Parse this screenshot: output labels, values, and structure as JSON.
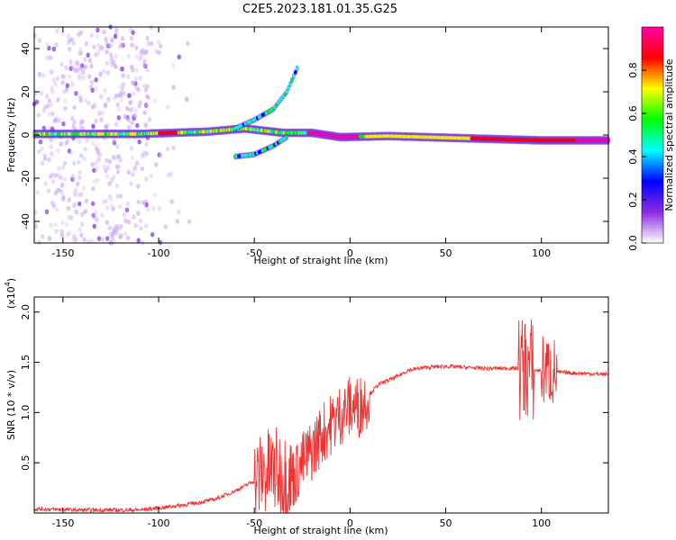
{
  "title": "C2E5.2023.181.01.35.G25",
  "chart_data": [
    {
      "type": "heatmap",
      "xlabel": "Height of straight line (km)",
      "ylabel": "Frequency (Hz)",
      "xlim": [
        -165,
        135
      ],
      "ylim": [
        -50,
        50
      ],
      "xticks": [
        -150,
        -100,
        -50,
        0,
        50,
        100
      ],
      "yticks": [
        -40,
        -20,
        0,
        20,
        40
      ],
      "colorbar": {
        "label": "Normalized spectral amplitude",
        "range": [
          0,
          1
        ],
        "ticks": [
          "0.0",
          "0.2",
          "0.4",
          "0.6",
          "0.8"
        ],
        "colors": [
          "#ffffff",
          "#8a2be2",
          "#0000ff",
          "#00ffff",
          "#00ff00",
          "#ffff00",
          "#ff0000",
          "#ff00aa"
        ]
      },
      "features": [
        {
          "name": "carrier",
          "x": [
            -165,
            -110,
            -75,
            -55,
            -35,
            -20,
            -5,
            20,
            60,
            100,
            135
          ],
          "y": [
            0.5,
            0.5,
            1.5,
            3,
            1,
            1,
            -1,
            -0.5,
            -1.5,
            -2.5,
            -2.5
          ]
        },
        {
          "name": "upper branch",
          "x": [
            -60,
            -50,
            -40,
            -33,
            -27
          ],
          "y": [
            3,
            7,
            12,
            20,
            32
          ]
        },
        {
          "name": "lower branch",
          "x": [
            -60,
            -50,
            -40,
            -33
          ],
          "y": [
            -10,
            -9,
            -5,
            -1
          ]
        }
      ]
    },
    {
      "type": "line",
      "xlabel": "Height of straight line (km)",
      "ylabel": "SNR (10 * v/v)",
      "yscale_label": "(x10",
      "yscale_exp": "4",
      "xlim": [
        -165,
        135
      ],
      "ylim": [
        0,
        2.15
      ],
      "xticks": [
        -150,
        -100,
        -50,
        0,
        50,
        100
      ],
      "yticks": [
        "0.5",
        "1.0",
        "1.5",
        "2.0"
      ],
      "color": "#ee3333",
      "series": [
        {
          "x": [
            -165,
            -140,
            -110,
            -95,
            -80,
            -70,
            -60,
            -50,
            -45,
            -40,
            -35,
            -30,
            -25,
            -20,
            -15,
            -10,
            -5,
            0,
            5,
            10,
            15,
            20,
            25,
            30,
            40,
            50,
            60,
            70,
            80,
            88,
            92,
            95,
            100,
            103,
            106,
            110,
            120,
            135
          ],
          "y": [
            0.04,
            0.03,
            0.03,
            0.06,
            0.1,
            0.14,
            0.22,
            0.32,
            0.4,
            0.42,
            0.38,
            0.34,
            0.5,
            0.62,
            0.78,
            0.88,
            0.98,
            1.06,
            1.06,
            1.18,
            1.28,
            1.32,
            1.36,
            1.42,
            1.45,
            1.46,
            1.45,
            1.44,
            1.44,
            1.44,
            1.45,
            1.42,
            1.42,
            1.42,
            1.4,
            1.4,
            1.39,
            1.38
          ]
        }
      ],
      "noise": [
        {
          "x": [
            -50,
            -30
          ],
          "amplitude": 0.5
        },
        {
          "x": [
            -30,
            10
          ],
          "amplitude": 0.35
        },
        {
          "x": [
            88,
            96
          ],
          "amplitude": 0.6
        },
        {
          "x": [
            100,
            108
          ],
          "amplitude": 0.4
        }
      ]
    }
  ]
}
